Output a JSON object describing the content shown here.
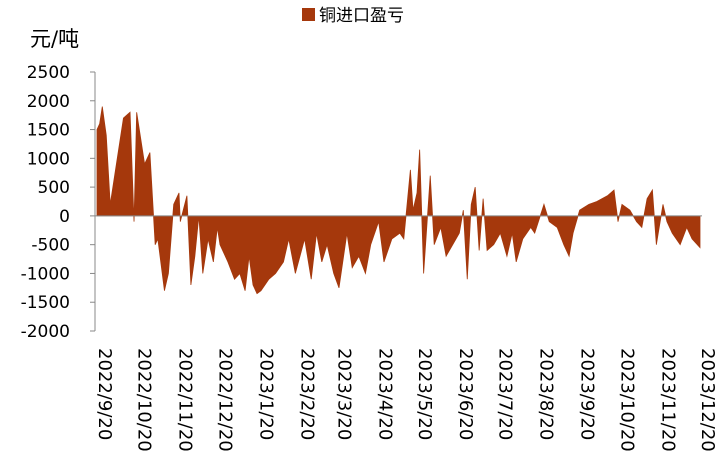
{
  "chart_data": {
    "type": "area",
    "y_axis_label": "元/吨",
    "series": [
      {
        "name": "铜进口盈亏",
        "color": "#a5380c",
        "x": [
          "2022/9/20",
          "2022/9/22",
          "2022/9/24",
          "2022/9/27",
          "2022/9/30",
          "2022/10/10",
          "2022/10/15",
          "2022/10/18",
          "2022/10/20",
          "2022/10/22",
          "2022/10/26",
          "2022/10/30",
          "2022/11/3",
          "2022/11/5",
          "2022/11/10",
          "2022/11/13",
          "2022/11/17",
          "2022/11/21",
          "2022/11/22",
          "2022/11/27",
          "2022/11/30",
          "2022/12/3",
          "2022/12/6",
          "2022/12/9",
          "2022/12/13",
          "2022/12/17",
          "2022/12/20",
          "2022/12/22",
          "2022/12/28",
          "2023/1/2",
          "2023/1/6",
          "2023/1/10",
          "2023/1/13",
          "2023/1/16",
          "2023/1/19",
          "2023/1/22",
          "2023/1/28",
          "2023/2/2",
          "2023/2/8",
          "2023/2/12",
          "2023/2/17",
          "2023/2/24",
          "2023/3/1",
          "2023/3/5",
          "2023/3/9",
          "2023/3/13",
          "2023/3/18",
          "2023/3/22",
          "2023/3/28",
          "2023/4/1",
          "2023/4/6",
          "2023/4/11",
          "2023/4/15",
          "2023/4/21",
          "2023/4/25",
          "2023/5/1",
          "2023/5/7",
          "2023/5/10",
          "2023/5/15",
          "2023/5/17",
          "2023/5/20",
          "2023/5/22",
          "2023/5/25",
          "2023/5/30",
          "2023/6/2",
          "2023/6/7",
          "2023/6/11",
          "2023/6/16",
          "2023/6/21",
          "2023/6/24",
          "2023/6/27",
          "2023/6/30",
          "2023/7/3",
          "2023/7/6",
          "2023/7/9",
          "2023/7/12",
          "2023/7/17",
          "2023/7/22",
          "2023/7/27",
          "2023/7/31",
          "2023/8/3",
          "2023/8/8",
          "2023/8/14",
          "2023/8/17",
          "2023/8/24",
          "2023/8/28",
          "2023/9/3",
          "2023/9/8",
          "2023/9/12",
          "2023/9/15",
          "2023/9/20",
          "2023/9/27",
          "2023/10/3",
          "2023/10/11",
          "2023/10/16",
          "2023/10/19",
          "2023/10/22",
          "2023/10/28",
          "2023/11/2",
          "2023/11/6",
          "2023/11/10",
          "2023/11/14",
          "2023/11/17",
          "2023/11/22",
          "2023/11/25",
          "2023/11/29",
          "2023/12/5",
          "2023/12/10",
          "2023/12/14",
          "2023/12/20"
        ],
        "values": [
          1500,
          1600,
          1900,
          1400,
          200,
          1700,
          1800,
          -100,
          1800,
          1500,
          900,
          1100,
          -500,
          -400,
          -1300,
          -1000,
          200,
          400,
          -100,
          350,
          -1200,
          -700,
          0,
          -1000,
          -400,
          -800,
          -200,
          -500,
          -800,
          -1100,
          -1000,
          -1300,
          -700,
          -1200,
          -1350,
          -1300,
          -1100,
          -1000,
          -800,
          -400,
          -1000,
          -400,
          -1100,
          -300,
          -800,
          -500,
          -1000,
          -1250,
          -300,
          -900,
          -700,
          -1000,
          -500,
          -100,
          -800,
          -400,
          -300,
          -400,
          800,
          100,
          400,
          1150,
          -1000,
          700,
          -500,
          -200,
          -700,
          -500,
          -300,
          100,
          -1100,
          200,
          500,
          -600,
          300,
          -600,
          -500,
          -300,
          -700,
          -300,
          -800,
          -400,
          -200,
          -300,
          200,
          -100,
          -200,
          -500,
          -700,
          -300,
          100,
          200,
          250,
          350,
          450,
          -100,
          200,
          100,
          -100,
          -200,
          300,
          450,
          -500,
          200,
          -100,
          -300,
          -500,
          -200,
          -400,
          -550
        ]
      }
    ],
    "xlim": [
      "2022/9/20",
      "2023/12/20"
    ],
    "xticks": [
      "2022/9/20",
      "2022/10/20",
      "2022/11/20",
      "2022/12/20",
      "2023/1/20",
      "2023/2/20",
      "2023/3/20",
      "2023/4/20",
      "2023/5/20",
      "2023/6/20",
      "2023/7/20",
      "2023/8/20",
      "2023/9/20",
      "2023/10/20",
      "2023/11/20",
      "2023/12/20"
    ],
    "ylim": [
      -2000,
      2500
    ],
    "yticks": [
      -2000,
      -1500,
      -1000,
      -500,
      0,
      500,
      1000,
      1500,
      2000,
      2500
    ],
    "legend": "top"
  }
}
